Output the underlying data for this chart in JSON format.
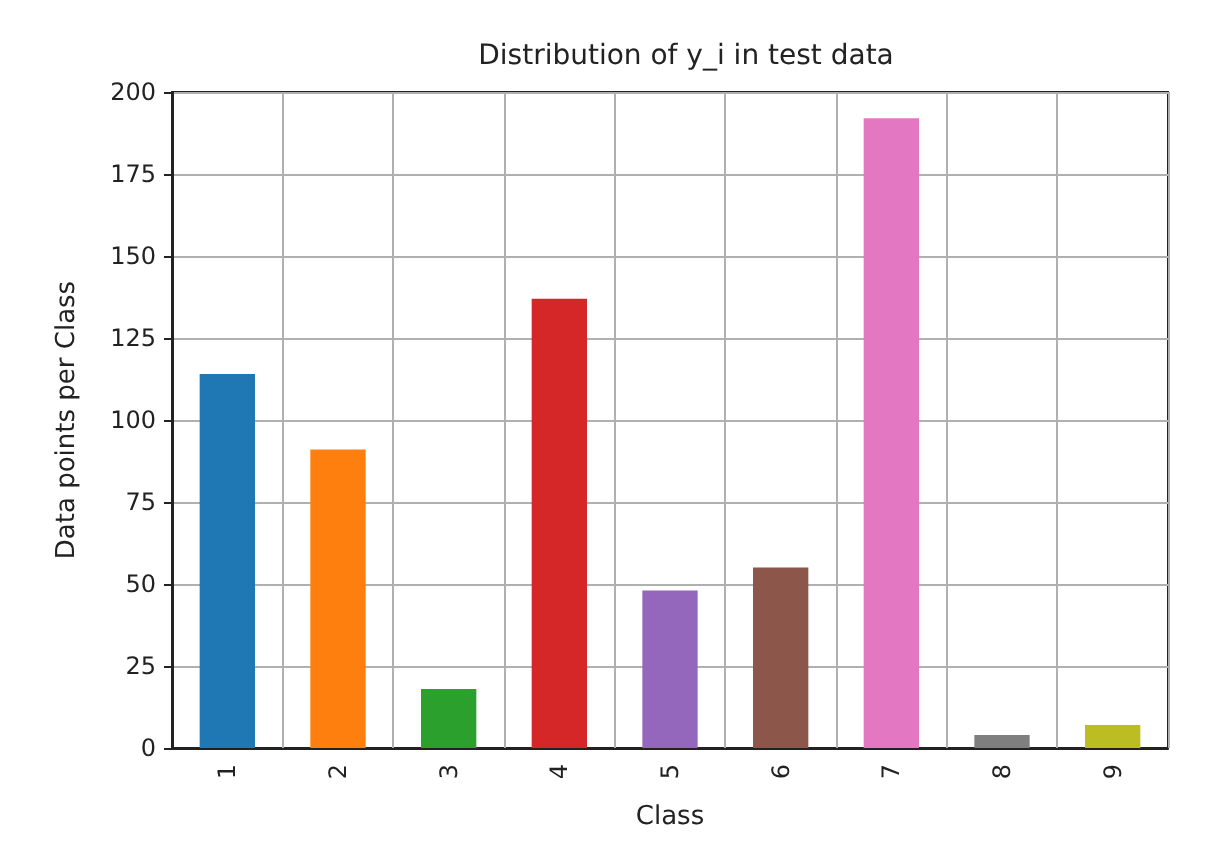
{
  "chart_data": {
    "type": "bar",
    "title": "Distribution of y_i in test data",
    "xlabel": "Class",
    "ylabel": "Data points per Class",
    "categories": [
      "1",
      "2",
      "3",
      "4",
      "5",
      "6",
      "7",
      "8",
      "9"
    ],
    "values": [
      114,
      91,
      18,
      137,
      48,
      55,
      192,
      4,
      7
    ],
    "colors": [
      "#1f77b4",
      "#ff7f0e",
      "#2ca02c",
      "#d62728",
      "#9467bd",
      "#8c564b",
      "#e377c2",
      "#7f7f7f",
      "#bcbd22"
    ],
    "ylim": [
      0,
      200
    ],
    "yticks": [
      0,
      25,
      50,
      75,
      100,
      125,
      150,
      175,
      200
    ],
    "grid": true
  }
}
